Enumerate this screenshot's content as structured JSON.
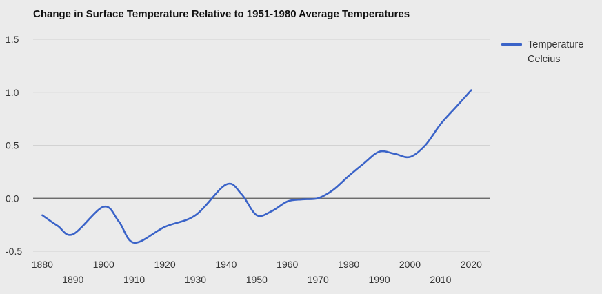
{
  "chart_data": {
    "type": "line",
    "title": "Change in Surface Temperature Relative to 1951-1980 Average Temperatures",
    "xlabel": "",
    "ylabel": "",
    "xlim": [
      1877,
      2026
    ],
    "ylim": [
      -0.5,
      1.5
    ],
    "yticks": [
      "1.5",
      "1.0",
      "0.5",
      "0.0",
      "-0.5"
    ],
    "ytick_values": [
      1.5,
      1.0,
      0.5,
      0.0,
      -0.5
    ],
    "xticks_upper": [
      "1880",
      "1900",
      "1920",
      "1940",
      "1960",
      "1980",
      "2000",
      "2020"
    ],
    "xticks_lower": [
      "1890",
      "1910",
      "1930",
      "1950",
      "1970",
      "1990",
      "2010"
    ],
    "grid": true,
    "legend_position": "right",
    "legend_lines": [
      "Temperature",
      "Celcius"
    ],
    "series": [
      {
        "name": "Temperature Celcius",
        "color": "#3a63c8",
        "x": [
          1880,
          1885,
          1890,
          1900,
          1905,
          1910,
          1920,
          1930,
          1940,
          1945,
          1950,
          1955,
          1960,
          1965,
          1970,
          1975,
          1980,
          1985,
          1990,
          1995,
          2000,
          2005,
          2010,
          2015,
          2020
        ],
        "y": [
          -0.16,
          -0.26,
          -0.34,
          -0.08,
          -0.22,
          -0.42,
          -0.27,
          -0.16,
          0.13,
          0.04,
          -0.16,
          -0.12,
          -0.03,
          -0.01,
          0.0,
          0.08,
          0.21,
          0.33,
          0.44,
          0.42,
          0.39,
          0.5,
          0.7,
          0.86,
          1.02
        ]
      }
    ]
  }
}
